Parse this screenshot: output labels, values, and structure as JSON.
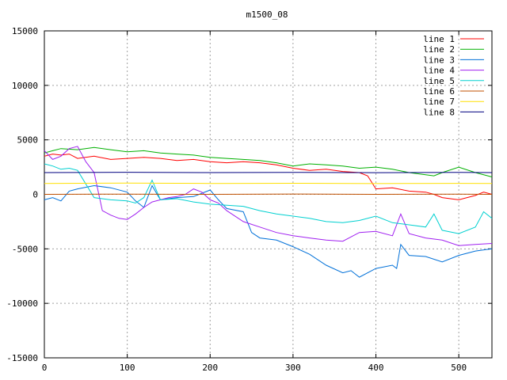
{
  "chart_data": {
    "type": "line",
    "title": "m1500_08",
    "xlabel": "",
    "ylabel": "",
    "xlim": [
      0,
      540
    ],
    "ylim": [
      -15000,
      15000
    ],
    "xticks": [
      0,
      100,
      200,
      300,
      400,
      500
    ],
    "yticks": [
      -15000,
      -10000,
      -5000,
      0,
      5000,
      10000,
      15000
    ],
    "grid": true,
    "legend_position": "top-right",
    "series": [
      {
        "name": "line 1",
        "color": "#ff0000",
        "x": [
          0,
          10,
          20,
          30,
          40,
          60,
          80,
          100,
          120,
          140,
          160,
          180,
          200,
          220,
          240,
          260,
          280,
          300,
          320,
          340,
          360,
          380,
          390,
          400,
          420,
          440,
          460,
          470,
          480,
          500,
          520,
          530,
          540
        ],
        "y": [
          3500,
          3700,
          3600,
          3700,
          3300,
          3500,
          3200,
          3300,
          3400,
          3300,
          3100,
          3200,
          3000,
          2900,
          3000,
          2900,
          2700,
          2400,
          2200,
          2300,
          2100,
          2000,
          1700,
          500,
          600,
          300,
          200,
          0,
          -300,
          -500,
          -100,
          200,
          0
        ]
      },
      {
        "name": "line 2",
        "color": "#00b000",
        "x": [
          0,
          10,
          20,
          40,
          60,
          80,
          100,
          120,
          140,
          160,
          180,
          200,
          220,
          240,
          260,
          280,
          300,
          320,
          340,
          360,
          380,
          400,
          420,
          440,
          460,
          470,
          480,
          500,
          520,
          540
        ],
        "y": [
          3800,
          4000,
          4200,
          4100,
          4300,
          4100,
          3900,
          4000,
          3800,
          3700,
          3600,
          3400,
          3300,
          3200,
          3100,
          2900,
          2600,
          2800,
          2700,
          2600,
          2400,
          2500,
          2300,
          2000,
          1800,
          1700,
          2000,
          2500,
          2000,
          1600
        ]
      },
      {
        "name": "line 3",
        "color": "#0070d8",
        "x": [
          0,
          10,
          20,
          30,
          40,
          60,
          80,
          100,
          110,
          120,
          130,
          140,
          160,
          180,
          200,
          210,
          220,
          240,
          250,
          260,
          280,
          300,
          320,
          340,
          360,
          370,
          380,
          400,
          420,
          425,
          430,
          440,
          460,
          480,
          500,
          520,
          540
        ],
        "y": [
          -500,
          -300,
          -600,
          300,
          500,
          800,
          600,
          200,
          -600,
          -1200,
          800,
          -500,
          -300,
          -200,
          400,
          -500,
          -1300,
          -1600,
          -3500,
          -4000,
          -4200,
          -4800,
          -5500,
          -6500,
          -7200,
          -7000,
          -7600,
          -6800,
          -6500,
          -6800,
          -4600,
          -5600,
          -5700,
          -6200,
          -5600,
          -5200,
          -5000
        ]
      },
      {
        "name": "line 4",
        "color": "#a020f0",
        "x": [
          0,
          10,
          20,
          30,
          40,
          50,
          60,
          70,
          80,
          90,
          100,
          110,
          120,
          130,
          140,
          150,
          160,
          170,
          180,
          190,
          200,
          210,
          220,
          240,
          260,
          280,
          300,
          320,
          340,
          360,
          380,
          400,
          420,
          430,
          440,
          460,
          480,
          500,
          520,
          540
        ],
        "y": [
          4000,
          3200,
          3500,
          4200,
          4400,
          3000,
          2000,
          -1500,
          -1900,
          -2200,
          -2300,
          -1800,
          -1200,
          -700,
          -500,
          -300,
          -200,
          0,
          500,
          200,
          -500,
          -800,
          -1500,
          -2500,
          -3000,
          -3500,
          -3800,
          -4000,
          -4200,
          -4300,
          -3500,
          -3400,
          -3800,
          -1800,
          -3600,
          -4000,
          -4200,
          -4700,
          -4600,
          -4500
        ]
      },
      {
        "name": "line 5",
        "color": "#00d0d0",
        "x": [
          0,
          10,
          20,
          30,
          40,
          60,
          80,
          100,
          110,
          120,
          130,
          140,
          160,
          180,
          200,
          220,
          240,
          260,
          280,
          300,
          320,
          340,
          360,
          380,
          400,
          420,
          440,
          460,
          470,
          480,
          500,
          520,
          530,
          540
        ],
        "y": [
          2800,
          2600,
          2300,
          2400,
          2200,
          -300,
          -500,
          -600,
          -800,
          -300,
          1300,
          -500,
          -400,
          -700,
          -900,
          -1000,
          -1100,
          -1500,
          -1800,
          -2000,
          -2200,
          -2500,
          -2600,
          -2400,
          -2000,
          -2600,
          -2800,
          -3000,
          -1800,
          -3300,
          -3600,
          -3000,
          -1600,
          -2200
        ]
      },
      {
        "name": "line 6",
        "color": "#c05000",
        "x": [
          0,
          100,
          200,
          300,
          400,
          500,
          540
        ],
        "y": [
          0,
          20,
          0,
          30,
          0,
          20,
          0
        ]
      },
      {
        "name": "line 7",
        "color": "#ffe000",
        "x": [
          0,
          100,
          200,
          300,
          400,
          500,
          540
        ],
        "y": [
          1000,
          1030,
          1000,
          1020,
          990,
          1010,
          1000
        ]
      },
      {
        "name": "line 8",
        "color": "#000080",
        "x": [
          0,
          100,
          200,
          300,
          400,
          500,
          540
        ],
        "y": [
          2000,
          2030,
          2000,
          2020,
          1990,
          2010,
          2000
        ]
      }
    ]
  }
}
